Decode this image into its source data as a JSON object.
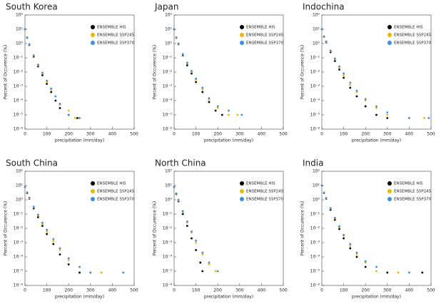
{
  "chart_data": [
    {
      "type": "scatter",
      "title": "South Korea",
      "x_label": "precipitation (mm/day)",
      "y_label": "Percent of Occurence (%)",
      "log_y": true,
      "legend": "upper right",
      "xlim": [
        0,
        500
      ],
      "ylim": [
        1e-06,
        100
      ],
      "xticks": [
        0,
        100,
        200,
        300,
        400,
        500
      ],
      "yticks": [
        {
          "value": 100,
          "label": "10²"
        },
        {
          "value": 10,
          "label": "10¹"
        },
        {
          "value": 1,
          "label": "10⁰"
        },
        {
          "value": 0.1,
          "label": "10⁻¹"
        },
        {
          "value": 0.01,
          "label": "10⁻²"
        },
        {
          "value": 0.001,
          "label": "10⁻³"
        },
        {
          "value": 0.0001,
          "label": "10⁻⁴"
        },
        {
          "value": 1e-05,
          "label": "10⁻⁵"
        },
        {
          "value": 1e-06,
          "label": "10⁻⁶"
        }
      ],
      "series": [
        {
          "name": "ENSEMBLE HIS",
          "color": "#000000",
          "x": [
            0,
            10,
            20,
            40,
            60,
            80,
            100,
            120,
            140,
            160,
            200,
            240
          ],
          "values": [
            10,
            2.5,
            0.8,
            0.12,
            0.025,
            0.006,
            0.0015,
            0.0004,
            0.0001,
            3e-05,
            1e-05,
            6e-06
          ]
        },
        {
          "name": "ENSEMBLE SSP245",
          "color": "#f5b400",
          "x": [
            0,
            10,
            20,
            40,
            60,
            80,
            100,
            120,
            140,
            160,
            200,
            230
          ],
          "values": [
            10,
            2.6,
            0.85,
            0.14,
            0.03,
            0.008,
            0.002,
            0.0006,
            0.0002,
            5e-05,
            2e-05,
            6e-06
          ]
        },
        {
          "name": "ENSEMBLE SSP370",
          "color": "#3a8ee6",
          "x": [
            0,
            10,
            20,
            40,
            60,
            80,
            100,
            120,
            140,
            160,
            200,
            250
          ],
          "values": [
            10,
            2.7,
            0.9,
            0.15,
            0.033,
            0.009,
            0.0025,
            0.0007,
            0.0002,
            6e-05,
            1e-05,
            6e-06
          ]
        }
      ]
    },
    {
      "type": "scatter",
      "title": "Japan",
      "x_label": "precipitation (mm/day)",
      "y_label": "Percent of Occurence (%)",
      "log_y": true,
      "legend": "upper right",
      "xlim": [
        0,
        500
      ],
      "ylim": [
        1e-06,
        100
      ],
      "xticks": [
        0,
        100,
        200,
        300,
        400,
        500
      ],
      "yticks": [
        {
          "value": 100,
          "label": "10²"
        },
        {
          "value": 10,
          "label": "10¹"
        },
        {
          "value": 1,
          "label": "10⁰"
        },
        {
          "value": 0.1,
          "label": "10⁻¹"
        },
        {
          "value": 0.01,
          "label": "10⁻²"
        },
        {
          "value": 0.001,
          "label": "10⁻³"
        },
        {
          "value": 0.0001,
          "label": "10⁻⁴"
        },
        {
          "value": 1e-05,
          "label": "10⁻⁵"
        },
        {
          "value": 1e-06,
          "label": "10⁻⁶"
        }
      ],
      "series": [
        {
          "name": "ENSEMBLE HIS",
          "color": "#000000",
          "x": [
            0,
            10,
            20,
            40,
            60,
            80,
            100,
            130,
            160,
            190,
            220
          ],
          "values": [
            10,
            2.5,
            0.9,
            0.15,
            0.03,
            0.008,
            0.002,
            0.0004,
            8e-05,
            2e-05,
            1e-05
          ]
        },
        {
          "name": "ENSEMBLE SSP245",
          "color": "#f5b400",
          "x": [
            0,
            10,
            20,
            40,
            60,
            80,
            100,
            130,
            160,
            200,
            250,
            290
          ],
          "values": [
            10,
            2.6,
            0.95,
            0.17,
            0.04,
            0.01,
            0.003,
            0.0006,
            0.00012,
            3e-05,
            1e-05,
            1e-05
          ]
        },
        {
          "name": "ENSEMBLE SSP370",
          "color": "#3a8ee6",
          "x": [
            0,
            10,
            20,
            40,
            60,
            80,
            100,
            130,
            160,
            200,
            250,
            310
          ],
          "values": [
            10,
            2.7,
            1,
            0.18,
            0.045,
            0.012,
            0.0035,
            0.0008,
            0.00015,
            4e-05,
            2e-05,
            1e-05
          ]
        }
      ]
    },
    {
      "type": "scatter",
      "title": "Indochina",
      "x_label": "precipitation (mm/day)",
      "y_label": "Percent of Occurence (%)",
      "log_y": true,
      "legend": "upper right",
      "xlim": [
        0,
        500
      ],
      "ylim": [
        1e-06,
        100
      ],
      "xticks": [
        0,
        100,
        200,
        300,
        400,
        500
      ],
      "yticks": [
        {
          "value": 100,
          "label": "10²"
        },
        {
          "value": 10,
          "label": "10¹"
        },
        {
          "value": 1,
          "label": "10⁰"
        },
        {
          "value": 0.1,
          "label": "10⁻¹"
        },
        {
          "value": 0.01,
          "label": "10⁻²"
        },
        {
          "value": 0.001,
          "label": "10⁻³"
        },
        {
          "value": 0.0001,
          "label": "10⁻⁴"
        },
        {
          "value": 1e-05,
          "label": "10⁻⁵"
        },
        {
          "value": 1e-06,
          "label": "10⁻⁶"
        }
      ],
      "series": [
        {
          "name": "ENSEMBLE HIS",
          "color": "#000000",
          "x": [
            0,
            10,
            20,
            40,
            60,
            80,
            100,
            130,
            160,
            200,
            250,
            300
          ],
          "values": [
            10,
            3,
            1.2,
            0.25,
            0.06,
            0.015,
            0.004,
            0.0008,
            0.0002,
            4e-05,
            1e-05,
            6e-06
          ]
        },
        {
          "name": "ENSEMBLE SSP245",
          "color": "#f5b400",
          "x": [
            0,
            10,
            20,
            40,
            60,
            80,
            100,
            130,
            160,
            200,
            250,
            300,
            400,
            470
          ],
          "values": [
            10,
            3,
            1.3,
            0.3,
            0.08,
            0.02,
            0.006,
            0.0013,
            0.0004,
            0.0001,
            3e-05,
            1e-05,
            6e-06,
            6e-06
          ]
        },
        {
          "name": "ENSEMBLE SSP370",
          "color": "#3a8ee6",
          "x": [
            0,
            10,
            20,
            40,
            60,
            80,
            100,
            130,
            160,
            200,
            250,
            300,
            400,
            490
          ],
          "values": [
            10,
            3.1,
            1.4,
            0.32,
            0.09,
            0.025,
            0.008,
            0.0018,
            0.0005,
            0.00013,
            4e-05,
            1.5e-05,
            6e-06,
            6e-06
          ]
        }
      ]
    },
    {
      "type": "scatter",
      "title": "South China",
      "x_label": "precipitation (mm/day)",
      "y_label": "Percent of Occurence (%)",
      "log_y": true,
      "legend": "upper right",
      "xlim": [
        0,
        500
      ],
      "ylim": [
        1e-06,
        100
      ],
      "xticks": [
        0,
        100,
        200,
        300,
        400,
        500
      ],
      "yticks": [
        {
          "value": 100,
          "label": "10²"
        },
        {
          "value": 10,
          "label": "10¹"
        },
        {
          "value": 1,
          "label": "10⁰"
        },
        {
          "value": 0.1,
          "label": "10⁻¹"
        },
        {
          "value": 0.01,
          "label": "10⁻²"
        },
        {
          "value": 0.001,
          "label": "10⁻³"
        },
        {
          "value": 0.0001,
          "label": "10⁻⁴"
        },
        {
          "value": 1e-05,
          "label": "10⁻⁵"
        },
        {
          "value": 1e-06,
          "label": "10⁻⁶"
        }
      ],
      "series": [
        {
          "name": "ENSEMBLE HIS",
          "color": "#000000",
          "x": [
            0,
            10,
            20,
            40,
            60,
            80,
            100,
            130,
            160,
            200,
            250,
            300
          ],
          "values": [
            8,
            3,
            1.2,
            0.25,
            0.06,
            0.015,
            0.004,
            0.0008,
            0.00015,
            3e-05,
            8e-06,
            8e-06
          ]
        },
        {
          "name": "ENSEMBLE SSP245",
          "color": "#f5b400",
          "x": [
            0,
            10,
            20,
            40,
            60,
            80,
            100,
            130,
            160,
            200,
            250,
            350
          ],
          "values": [
            8,
            3.2,
            1.3,
            0.3,
            0.08,
            0.02,
            0.006,
            0.0013,
            0.0003,
            6e-05,
            2e-05,
            8e-06
          ]
        },
        {
          "name": "ENSEMBLE SSP370",
          "color": "#3a8ee6",
          "x": [
            0,
            10,
            20,
            40,
            60,
            80,
            100,
            130,
            160,
            200,
            250,
            300,
            450
          ],
          "values": [
            8,
            3.3,
            1.4,
            0.33,
            0.09,
            0.025,
            0.008,
            0.0018,
            0.0004,
            8e-05,
            2e-05,
            8e-06,
            8e-06
          ]
        }
      ]
    },
    {
      "type": "scatter",
      "title": "North China",
      "x_label": "precipitation (mm/day)",
      "y_label": "Percent of Occurence (%)",
      "log_y": true,
      "legend": "upper right",
      "xlim": [
        0,
        500
      ],
      "ylim": [
        1e-06,
        100
      ],
      "xticks": [
        0,
        100,
        200,
        300,
        400,
        500
      ],
      "yticks": [
        {
          "value": 100,
          "label": "10²"
        },
        {
          "value": 10,
          "label": "10¹"
        },
        {
          "value": 1,
          "label": "10⁰"
        },
        {
          "value": 0.1,
          "label": "10⁻¹"
        },
        {
          "value": 0.01,
          "label": "10⁻²"
        },
        {
          "value": 0.001,
          "label": "10⁻³"
        },
        {
          "value": 0.0001,
          "label": "10⁻⁴"
        },
        {
          "value": 1e-05,
          "label": "10⁻⁵"
        },
        {
          "value": 1e-06,
          "label": "10⁻⁶"
        }
      ],
      "series": [
        {
          "name": "ENSEMBLE HIS",
          "color": "#000000",
          "x": [
            0,
            10,
            20,
            40,
            60,
            80,
            100,
            120,
            130
          ],
          "values": [
            8,
            2.5,
            0.8,
            0.1,
            0.015,
            0.002,
            0.0003,
            4e-05,
            1e-05
          ]
        },
        {
          "name": "ENSEMBLE SSP245",
          "color": "#f5b400",
          "x": [
            0,
            10,
            20,
            40,
            60,
            80,
            100,
            130,
            160,
            190
          ],
          "values": [
            8,
            2.7,
            0.9,
            0.14,
            0.025,
            0.005,
            0.001,
            0.00015,
            3e-05,
            1e-05
          ]
        },
        {
          "name": "ENSEMBLE SSP370",
          "color": "#3a8ee6",
          "x": [
            0,
            10,
            20,
            40,
            60,
            80,
            100,
            130,
            160,
            200
          ],
          "values": [
            8,
            2.8,
            1,
            0.16,
            0.03,
            0.006,
            0.0014,
            0.0002,
            4e-05,
            1e-05
          ]
        }
      ]
    },
    {
      "type": "scatter",
      "title": "India",
      "x_label": "precipitation (mm/day)",
      "y_label": "Percent of Occurence (%)",
      "log_y": true,
      "legend": "upper right",
      "xlim": [
        0,
        500
      ],
      "ylim": [
        1e-06,
        100
      ],
      "xticks": [
        0,
        100,
        200,
        300,
        400,
        500
      ],
      "yticks": [
        {
          "value": 100,
          "label": "10²"
        },
        {
          "value": 10,
          "label": "10¹"
        },
        {
          "value": 1,
          "label": "10⁰"
        },
        {
          "value": 0.1,
          "label": "10⁻¹"
        },
        {
          "value": 0.01,
          "label": "10⁻²"
        },
        {
          "value": 0.001,
          "label": "10⁻³"
        },
        {
          "value": 0.0001,
          "label": "10⁻⁴"
        },
        {
          "value": 1e-05,
          "label": "10⁻⁵"
        },
        {
          "value": 1e-06,
          "label": "10⁻⁶"
        }
      ],
      "series": [
        {
          "name": "ENSEMBLE HIS",
          "color": "#000000",
          "x": [
            0,
            10,
            20,
            40,
            60,
            80,
            100,
            130,
            160,
            200,
            300,
            460
          ],
          "values": [
            10,
            3,
            1.2,
            0.2,
            0.04,
            0.009,
            0.002,
            0.0004,
            0.0001,
            2e-05,
            8e-06,
            8e-06
          ]
        },
        {
          "name": "ENSEMBLE SSP245",
          "color": "#f5b400",
          "x": [
            0,
            10,
            20,
            40,
            60,
            80,
            100,
            130,
            160,
            200,
            250,
            350
          ],
          "values": [
            10,
            3.1,
            1.3,
            0.24,
            0.05,
            0.012,
            0.003,
            0.0006,
            0.00015,
            4e-05,
            1e-05,
            8e-06
          ]
        },
        {
          "name": "ENSEMBLE SSP370",
          "color": "#3a8ee6",
          "x": [
            0,
            10,
            20,
            40,
            60,
            80,
            100,
            130,
            160,
            200,
            250,
            400
          ],
          "values": [
            10,
            3.2,
            1.35,
            0.26,
            0.055,
            0.014,
            0.0035,
            0.0008,
            0.0002,
            5e-05,
            2e-05,
            8e-06
          ]
        }
      ]
    }
  ]
}
